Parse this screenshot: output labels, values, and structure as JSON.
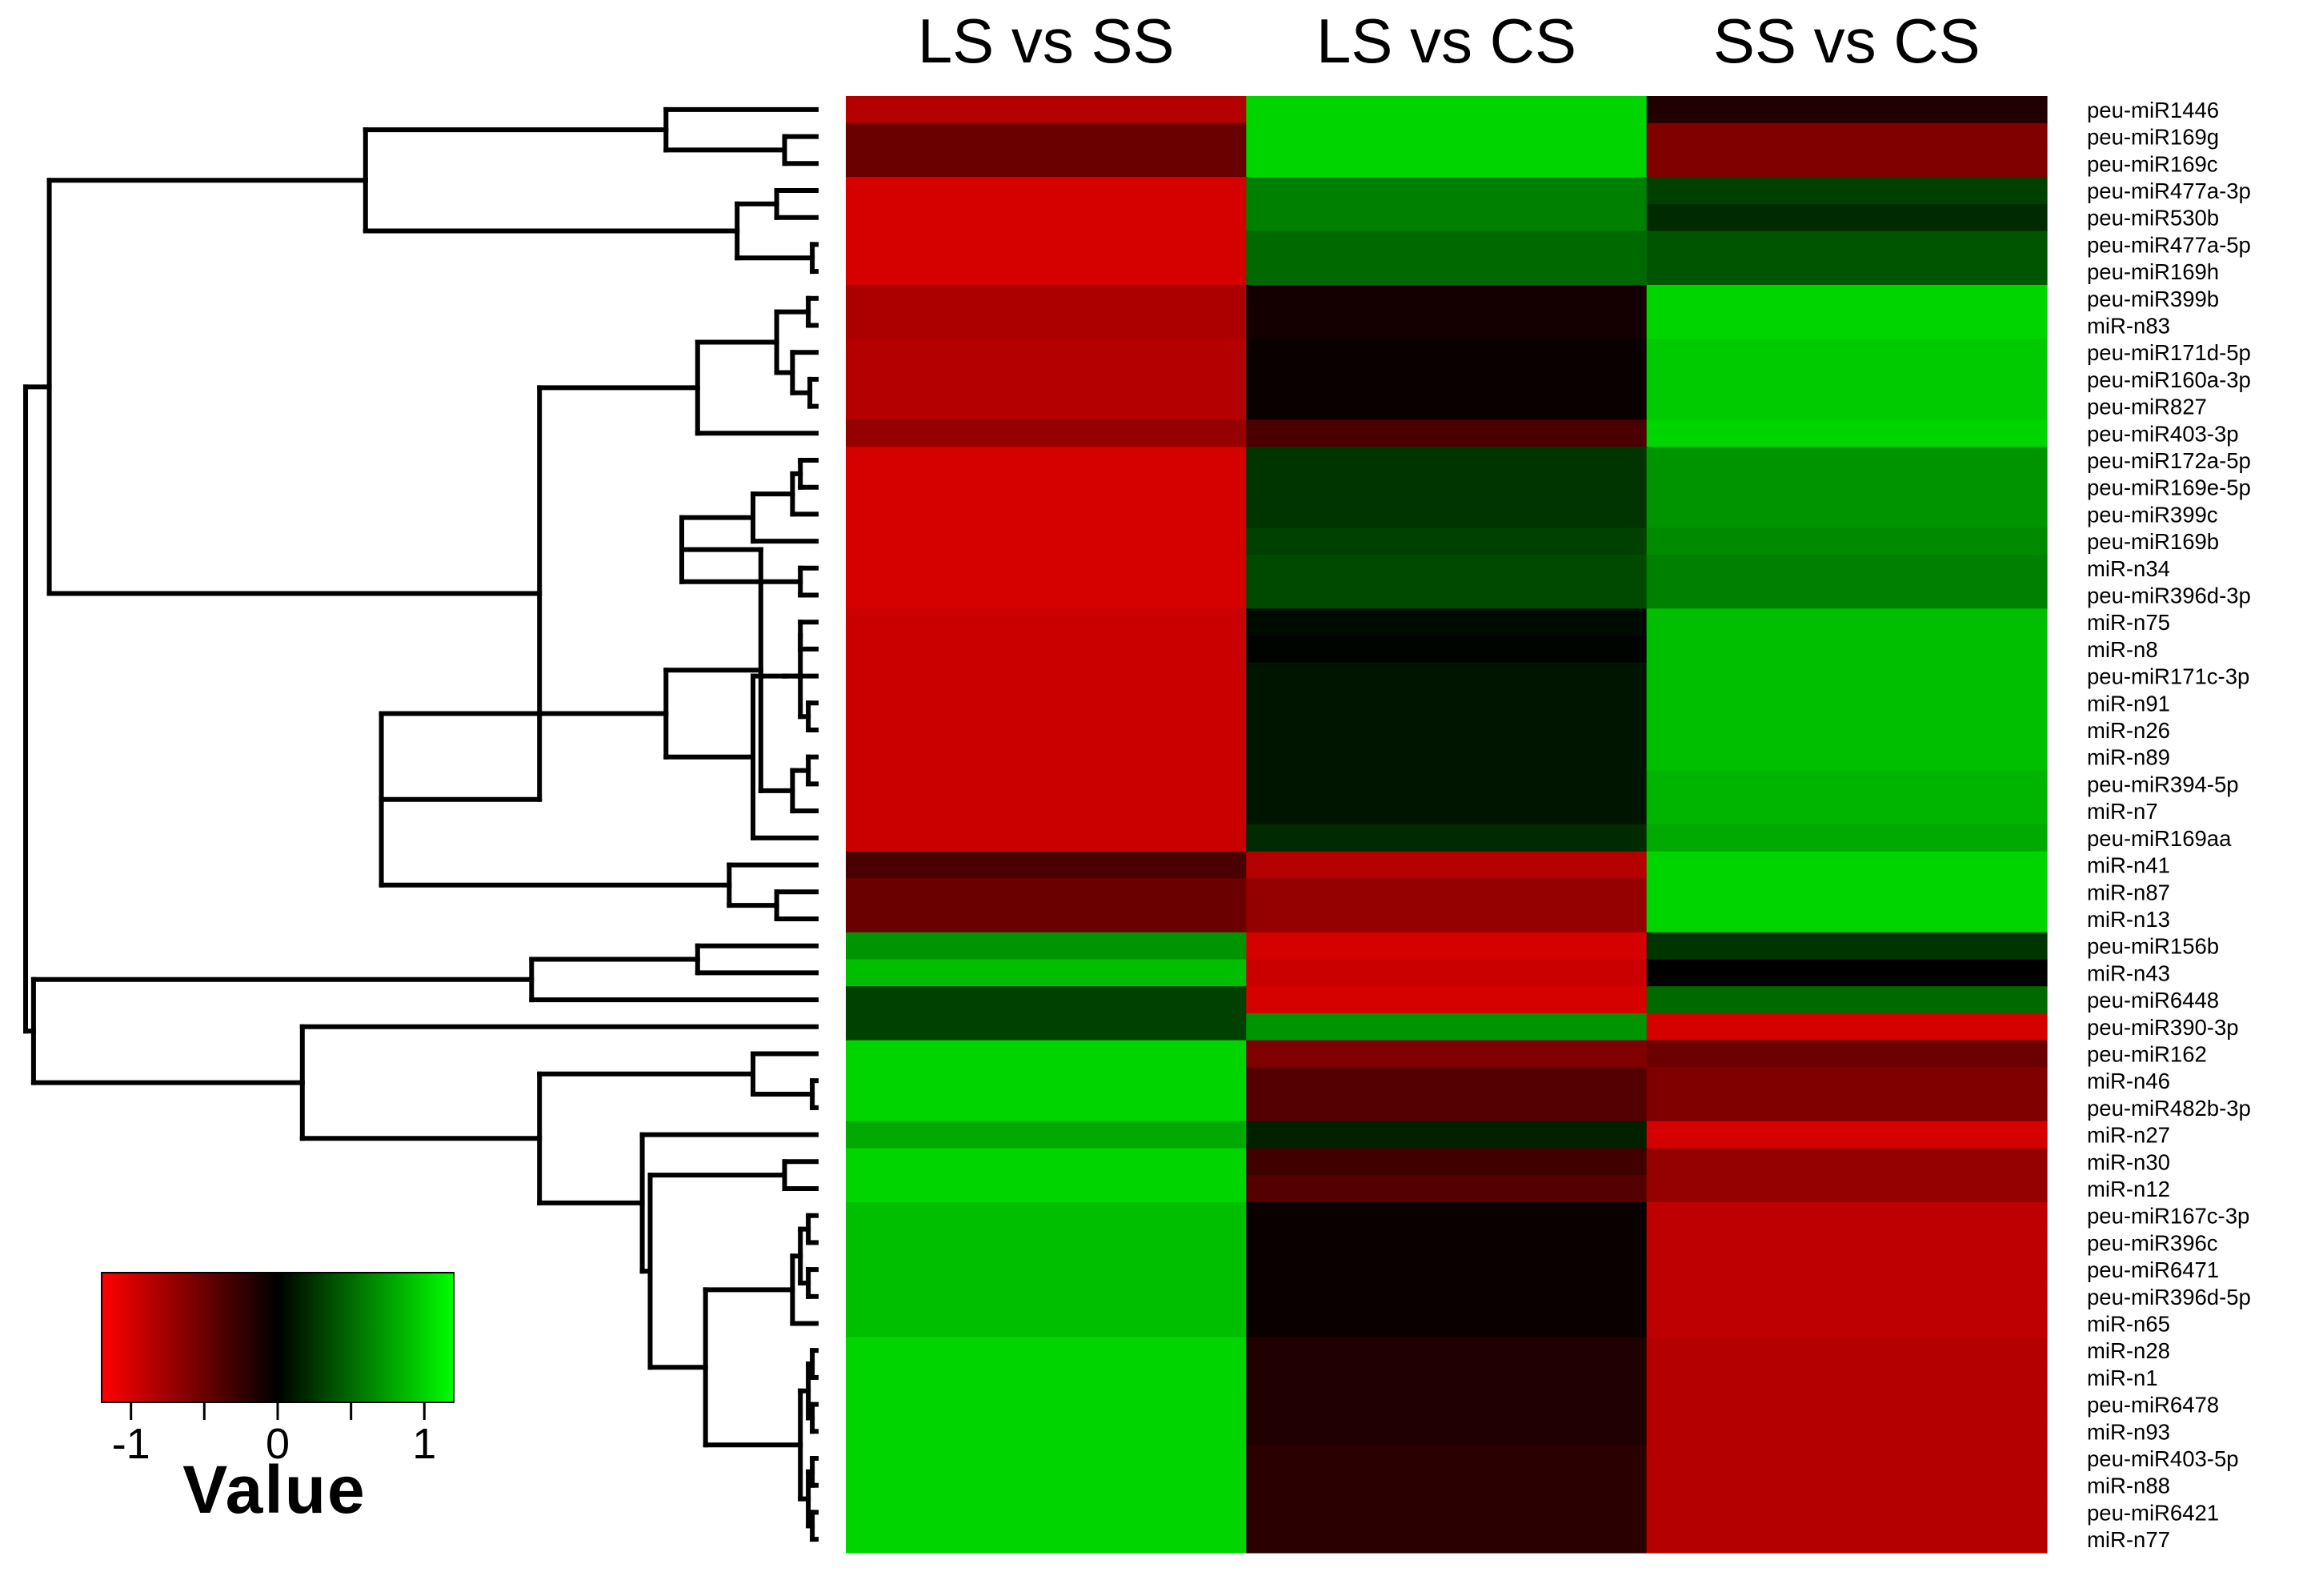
{
  "chart_data": {
    "type": "heatmap",
    "title": "",
    "columns": [
      "LS vs SS",
      "LS vs CS",
      "SS vs CS"
    ],
    "rows": [
      "peu-miR1446",
      "peu-miR169g",
      "peu-miR169c",
      "peu-miR477a-3p",
      "peu-miR530b",
      "peu-miR477a-5p",
      "peu-miR169h",
      "peu-miR399b",
      "miR-n83",
      "peu-miR171d-5p",
      "peu-miR160a-3p",
      "peu-miR827",
      "peu-miR403-3p",
      "peu-miR172a-5p",
      "peu-miR169e-5p",
      "peu-miR399c",
      "peu-miR169b",
      "miR-n34",
      "peu-miR396d-3p",
      "miR-n75",
      "miR-n8",
      "peu-miR171c-3p",
      "miR-n91",
      "miR-n26",
      "miR-n89",
      "peu-miR394-5p",
      "miR-n7",
      "peu-miR169aa",
      "miR-n41",
      "miR-n87",
      "miR-n13",
      "peu-miR156b",
      "miR-n43",
      "peu-miR6448",
      "peu-miR390-3p",
      "peu-miR162",
      "miR-n46",
      "peu-miR482b-3p",
      "miR-n27",
      "miR-n30",
      "miR-n12",
      "peu-miR167c-3p",
      "peu-miR396c",
      "peu-miR6471",
      "peu-miR396d-5p",
      "miR-n65",
      "miR-n28",
      "miR-n1",
      "peu-miR6478",
      "miR-n93",
      "peu-miR403-5p",
      "miR-n88",
      "peu-miR6421",
      "miR-n77"
    ],
    "values": [
      [
        -0.85,
        1.0,
        -0.15
      ],
      [
        -0.5,
        1.0,
        -0.6
      ],
      [
        -0.5,
        1.0,
        -0.6
      ],
      [
        -1.0,
        0.6,
        0.3
      ],
      [
        -1.0,
        0.6,
        0.2
      ],
      [
        -1.0,
        0.5,
        0.4
      ],
      [
        -1.0,
        0.5,
        0.4
      ],
      [
        -0.8,
        -0.1,
        1.0
      ],
      [
        -0.8,
        -0.1,
        1.0
      ],
      [
        -0.85,
        -0.05,
        0.95
      ],
      [
        -0.85,
        -0.05,
        0.95
      ],
      [
        -0.85,
        -0.05,
        0.95
      ],
      [
        -0.7,
        -0.35,
        1.0
      ],
      [
        -1.0,
        0.25,
        0.7
      ],
      [
        -1.0,
        0.25,
        0.7
      ],
      [
        -1.0,
        0.25,
        0.7
      ],
      [
        -1.0,
        0.3,
        0.65
      ],
      [
        -1.0,
        0.35,
        0.6
      ],
      [
        -1.0,
        0.35,
        0.6
      ],
      [
        -0.95,
        0.05,
        0.9
      ],
      [
        -0.95,
        0.02,
        0.9
      ],
      [
        -0.95,
        0.1,
        0.9
      ],
      [
        -0.95,
        0.1,
        0.9
      ],
      [
        -0.95,
        0.1,
        0.9
      ],
      [
        -0.95,
        0.1,
        0.9
      ],
      [
        -0.95,
        0.1,
        0.85
      ],
      [
        -0.95,
        0.1,
        0.85
      ],
      [
        -0.95,
        0.2,
        0.8
      ],
      [
        -0.35,
        -0.85,
        1.0
      ],
      [
        -0.5,
        -0.7,
        1.0
      ],
      [
        -0.5,
        -0.7,
        1.0
      ],
      [
        0.7,
        -1.0,
        0.25
      ],
      [
        0.9,
        -0.95,
        0.0
      ],
      [
        0.3,
        -1.0,
        0.5
      ],
      [
        0.3,
        0.7,
        -1.0
      ],
      [
        1.0,
        -0.6,
        -0.5
      ],
      [
        1.0,
        -0.4,
        -0.6
      ],
      [
        1.0,
        -0.4,
        -0.6
      ],
      [
        0.8,
        0.15,
        -1.0
      ],
      [
        1.0,
        -0.3,
        -0.7
      ],
      [
        1.0,
        -0.4,
        -0.7
      ],
      [
        0.9,
        -0.05,
        -0.9
      ],
      [
        0.9,
        -0.05,
        -0.9
      ],
      [
        0.9,
        -0.05,
        -0.9
      ],
      [
        0.9,
        -0.05,
        -0.9
      ],
      [
        0.9,
        -0.05,
        -0.9
      ],
      [
        1.0,
        -0.15,
        -0.85
      ],
      [
        1.0,
        -0.15,
        -0.85
      ],
      [
        1.0,
        -0.15,
        -0.85
      ],
      [
        1.0,
        -0.15,
        -0.85
      ],
      [
        1.0,
        -0.2,
        -0.85
      ],
      [
        1.0,
        -0.2,
        -0.85
      ],
      [
        1.0,
        -0.2,
        -0.85
      ],
      [
        1.0,
        -0.2,
        -0.85
      ]
    ],
    "color_scale": {
      "min": -1.2,
      "max": 1.2,
      "low_color": "#ff0000",
      "mid_color": "#000000",
      "high_color": "#00ff00"
    },
    "legend": {
      "title": "Value",
      "ticks": [
        -1,
        0,
        1
      ],
      "tick_labels": [
        "-1",
        "0",
        "1"
      ],
      "placement": "bottom-left"
    },
    "dendrogram": {
      "side": "left",
      "merges": [
        [
          -2,
          -3,
          0.04
        ],
        [
          -4,
          -5,
          0.05
        ],
        [
          -6,
          -7,
          0.005
        ],
        [
          2,
          3,
          0.1
        ],
        [
          -1,
          1,
          0.19
        ],
        [
          5,
          4,
          0.57
        ],
        [
          -8,
          -9,
          0.01
        ],
        [
          -11,
          -12,
          0.008
        ],
        [
          -10,
          8,
          0.03
        ],
        [
          7,
          9,
          0.05
        ],
        [
          10,
          -13,
          0.15
        ],
        [
          -14,
          -15,
          0.02
        ],
        [
          12,
          -16,
          0.03
        ],
        [
          13,
          -17,
          0.08
        ],
        [
          -18,
          -19,
          0.02
        ],
        [
          14,
          15,
          0.17
        ],
        [
          -20,
          -21,
          0.02
        ],
        [
          -23,
          -24,
          0.01
        ],
        [
          -25,
          -26,
          0.01
        ],
        [
          17,
          18,
          0.02
        ],
        [
          19,
          -27,
          0.03
        ],
        [
          20,
          -22,
          0.04
        ],
        [
          16,
          21,
          0.07
        ],
        [
          22,
          -28,
          0.08
        ],
        [
          23,
          24,
          0.19
        ],
        [
          -30,
          -31,
          0.05
        ],
        [
          -29,
          26,
          0.11
        ],
        [
          25,
          27,
          0.55
        ],
        [
          11,
          28,
          0.35
        ],
        [
          6,
          29,
          0.97
        ],
        [
          -32,
          -33,
          0.15
        ],
        [
          31,
          -34,
          0.36
        ],
        [
          -37,
          -38,
          0.005
        ],
        [
          -36,
          33,
          0.08
        ],
        [
          -40,
          -41,
          0.04
        ],
        [
          -42,
          -43,
          0.01
        ],
        [
          -44,
          -45,
          0.01
        ],
        [
          36,
          37,
          0.02
        ],
        [
          38,
          -46,
          0.03
        ],
        [
          -47,
          -48,
          0.005
        ],
        [
          -49,
          -50,
          0.005
        ],
        [
          40,
          41,
          0.01
        ],
        [
          -51,
          -52,
          0.005
        ],
        [
          -53,
          -54,
          0.005
        ],
        [
          43,
          44,
          0.01
        ],
        [
          42,
          45,
          0.02
        ],
        [
          39,
          46,
          0.14
        ],
        [
          35,
          47,
          0.21
        ],
        [
          48,
          -39,
          0.22
        ],
        [
          34,
          49,
          0.35
        ],
        [
          50,
          -35,
          0.65
        ],
        [
          32,
          51,
          0.99
        ],
        [
          30,
          52,
          1.0
        ]
      ]
    }
  }
}
